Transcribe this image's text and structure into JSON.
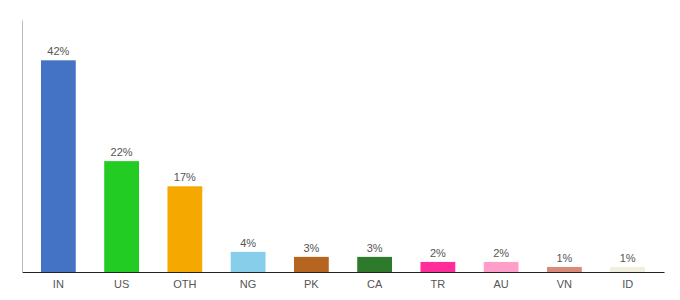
{
  "chart_data": {
    "type": "bar",
    "categories": [
      "IN",
      "US",
      "OTH",
      "NG",
      "PK",
      "CA",
      "TR",
      "AU",
      "VN",
      "ID"
    ],
    "values": [
      42,
      22,
      17,
      4,
      3,
      3,
      2,
      2,
      1,
      1
    ],
    "value_labels": [
      "42%",
      "22%",
      "17%",
      "4%",
      "3%",
      "3%",
      "2%",
      "2%",
      "1%",
      "1%"
    ],
    "colors": [
      "#4472c4",
      "#22cc22",
      "#f5a800",
      "#87ceeb",
      "#b5651d",
      "#2d7a2d",
      "#ff2d9a",
      "#ff9ec8",
      "#d9897a",
      "#f0eedc"
    ],
    "ylim": [
      0,
      50
    ],
    "data_labels": true,
    "tick_labels": "x"
  }
}
